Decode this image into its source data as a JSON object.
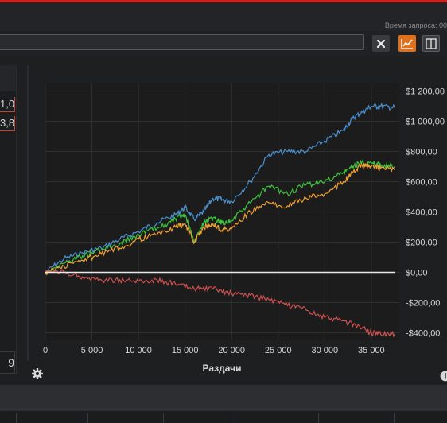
{
  "header": {
    "query_time_label": "Время запроса: 00"
  },
  "filter": {
    "value": "",
    "placeholder": ""
  },
  "toolbar": {
    "clear_icon": "close-icon",
    "chart_icon": "line-chart-icon",
    "split_icon": "split-view-icon",
    "chart_active_color": "#e0701c"
  },
  "left_panel": {
    "value_a": "1,0",
    "value_b": "3,8",
    "bottom_value": "9"
  },
  "chart_data": {
    "type": "line",
    "xlabel": "Раздачи",
    "ylabel": "",
    "xlim": [
      0,
      38000
    ],
    "ylim": [
      -450,
      1250
    ],
    "x_ticks": [
      0,
      5000,
      10000,
      15000,
      20000,
      25000,
      30000,
      35000
    ],
    "x_tick_labels": [
      "0",
      "5 000",
      "10 000",
      "15 000",
      "20 000",
      "25 000",
      "30 000",
      "35 000"
    ],
    "y_ticks": [
      1200,
      1000,
      800,
      600,
      400,
      200,
      0,
      -200,
      -400
    ],
    "y_tick_labels": [
      "$1 200,00",
      "$1 000,00",
      "$800,00",
      "$600,00",
      "$400,00",
      "$200,00",
      "$0,00",
      "-$200,00",
      "-$400,00"
    ],
    "grid": true,
    "series": [
      {
        "color": "#4a90d0",
        "x": [
          0,
          2000,
          4000,
          6000,
          8000,
          10000,
          12000,
          14000,
          15000,
          16000,
          17000,
          18000,
          19000,
          20000,
          22000,
          24000,
          26000,
          28000,
          30000,
          32000,
          33000,
          34000,
          35000,
          36000,
          37500
        ],
        "values": [
          0,
          90,
          130,
          160,
          220,
          270,
          330,
          380,
          430,
          350,
          400,
          490,
          480,
          470,
          600,
          780,
          800,
          800,
          870,
          940,
          1020,
          1060,
          1100,
          1100,
          1090
        ]
      },
      {
        "color": "#3cc43c",
        "x": [
          0,
          2000,
          4000,
          6000,
          8000,
          10000,
          12000,
          14000,
          15000,
          16000,
          17000,
          18000,
          19000,
          20000,
          22000,
          24000,
          26000,
          28000,
          30000,
          32000,
          33000,
          34000,
          35000,
          36000,
          37500
        ],
        "values": [
          0,
          60,
          110,
          150,
          190,
          250,
          290,
          350,
          380,
          200,
          330,
          360,
          330,
          340,
          460,
          570,
          520,
          580,
          600,
          660,
          700,
          730,
          720,
          710,
          700
        ]
      },
      {
        "color": "#f0a030",
        "x": [
          0,
          2000,
          4000,
          6000,
          8000,
          10000,
          12000,
          14000,
          15000,
          16000,
          17000,
          18000,
          19000,
          20000,
          22000,
          24000,
          26000,
          28000,
          30000,
          32000,
          33000,
          34000,
          35000,
          36000,
          37500
        ],
        "values": [
          0,
          40,
          80,
          120,
          160,
          220,
          250,
          300,
          320,
          200,
          300,
          320,
          280,
          290,
          400,
          460,
          440,
          490,
          520,
          600,
          660,
          710,
          700,
          690,
          680
        ]
      },
      {
        "color": "#d05050",
        "x": [
          0,
          2000,
          4000,
          6000,
          8000,
          10000,
          12000,
          14000,
          16000,
          18000,
          20000,
          22000,
          24000,
          26000,
          28000,
          30000,
          32000,
          34000,
          35000,
          36000,
          37500
        ],
        "values": [
          0,
          0,
          -30,
          -50,
          -50,
          -60,
          -50,
          -80,
          -110,
          -110,
          -140,
          -150,
          -180,
          -220,
          -250,
          -300,
          -320,
          -370,
          -400,
          -410,
          -410
        ]
      },
      {
        "color": "#e8e8e8",
        "x": [
          0,
          37500
        ],
        "values": [
          0,
          0
        ]
      }
    ]
  }
}
